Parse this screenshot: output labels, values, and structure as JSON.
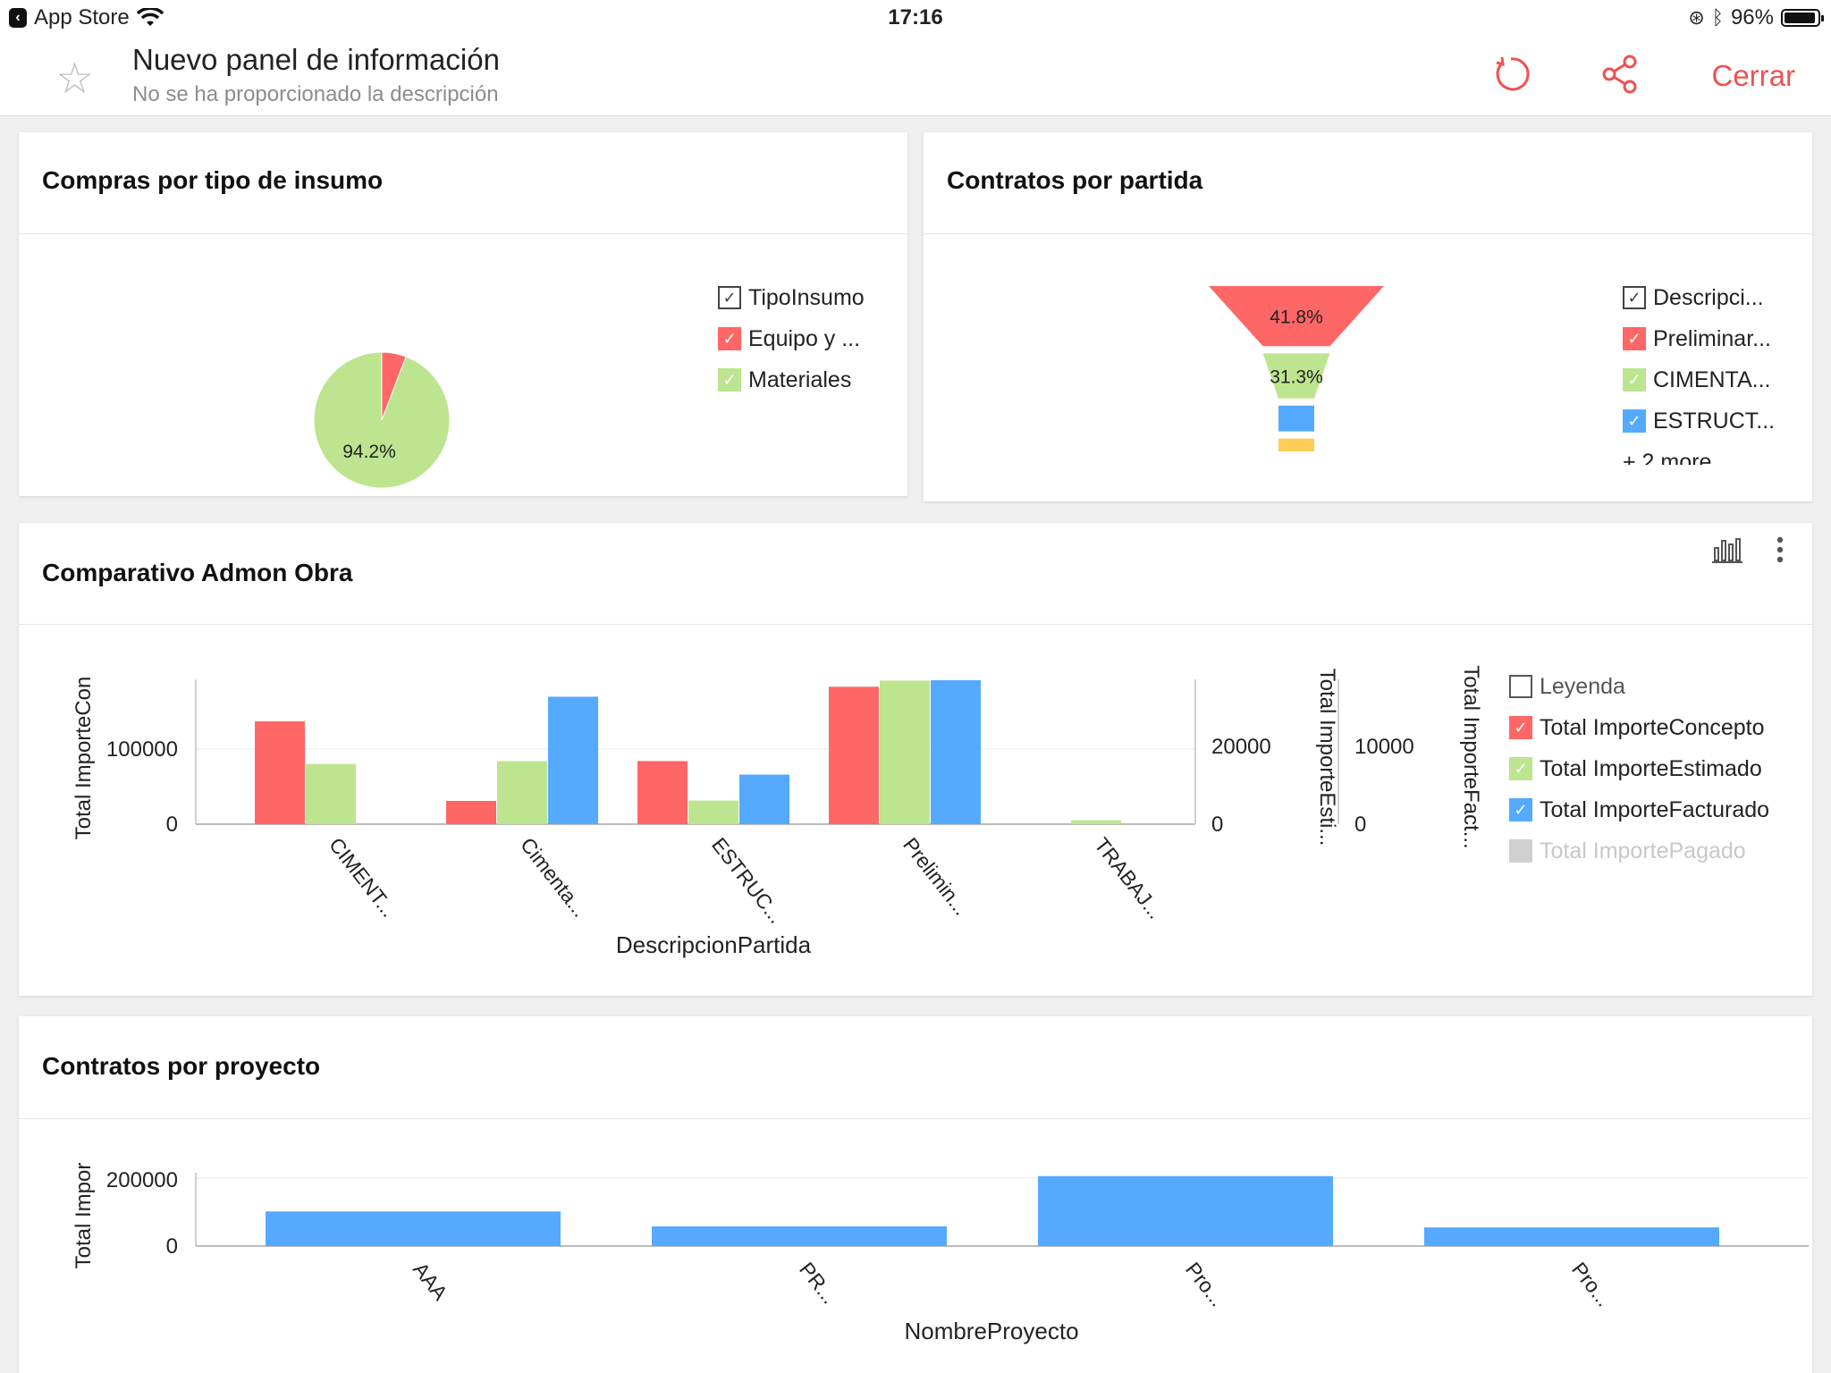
{
  "status_bar": {
    "back_app": "App Store",
    "time": "17:16",
    "battery": "96%"
  },
  "header": {
    "title": "Nuevo panel de información",
    "subtitle": "No se ha proporcionado la descripción",
    "close_label": "Cerrar"
  },
  "colors": {
    "accent": "#f05151",
    "red": "#ff6666",
    "green": "#bde58f",
    "blue": "#55aaff",
    "yellow": "#ffcc55",
    "grey": "#d0d0d0"
  },
  "cards": {
    "pie": {
      "title": "Compras por tipo de insumo",
      "legend_title": "TipoInsumo",
      "legend": [
        "Equipo y ...",
        "Materiales"
      ]
    },
    "funnel": {
      "title": "Contratos por partida",
      "legend_title": "Descripci...",
      "legend": [
        "Preliminar...",
        "CIMENTA...",
        "ESTRUCT..."
      ],
      "more": "+ 2 more"
    },
    "combo": {
      "title": "Comparativo Admon Obra",
      "legend_title": "Leyenda",
      "legend": [
        "Total ImporteConcepto",
        "Total ImporteEstimado",
        "Total ImporteFacturado",
        "Total ImportePagado"
      ],
      "ylabel_left": "Total ImporteCon",
      "ylabel_right1": "Total ImporteEsti...",
      "ylabel_right2": "Total ImporteFact...",
      "xlabel": "DescripcionPartida"
    },
    "bars": {
      "title": "Contratos por proyecto",
      "ylabel": "Total Impor",
      "xlabel": "NombreProyecto"
    }
  },
  "chart_data": [
    {
      "type": "pie",
      "title": "Compras por tipo de insumo",
      "slices": [
        {
          "name": "Equipo y ...",
          "value": 5.8,
          "color": "#ff6666"
        },
        {
          "name": "Materiales",
          "value": 94.2,
          "color": "#bde58f",
          "label": "94.2%"
        }
      ]
    },
    {
      "type": "funnel",
      "title": "Contratos por partida",
      "stages": [
        {
          "name": "Preliminar...",
          "value": 41.8,
          "label": "41.8%",
          "color": "#ff6666"
        },
        {
          "name": "CIMENTA...",
          "value": 31.3,
          "label": "31.3%",
          "color": "#bde58f"
        },
        {
          "name": "ESTRUCT...",
          "value": 18.0,
          "color": "#55aaff"
        },
        {
          "name": "",
          "value": 8.9,
          "color": "#ffcc55"
        }
      ]
    },
    {
      "type": "bar",
      "title": "Comparativo Admon Obra",
      "categories": [
        "CIMENT...",
        "Cimenta...",
        "ESTRUC...",
        "Prelimin...",
        "TRABAJ..."
      ],
      "axes": {
        "left": {
          "ticks": [
            "0",
            "100000"
          ],
          "ylim": [
            0,
            200000
          ]
        },
        "right1": {
          "ticks": [
            "0",
            "20000"
          ],
          "ylim": [
            0,
            40000
          ]
        },
        "right2": {
          "ticks": [
            "0",
            "10000"
          ],
          "ylim": [
            0,
            20000
          ]
        }
      },
      "series": [
        {
          "name": "Total ImporteConcepto",
          "axis": "left",
          "color": "#ff6666",
          "values": [
            137000,
            31000,
            84000,
            183000,
            0
          ]
        },
        {
          "name": "Total ImporteEstimado",
          "axis": "right1",
          "color": "#bde58f",
          "values": [
            15300,
            16000,
            6000,
            36500,
            1000
          ]
        },
        {
          "name": "Total ImporteFacturado",
          "axis": "right2",
          "color": "#55aaff",
          "values": [
            0,
            16200,
            6300,
            18300,
            0
          ]
        }
      ],
      "xlabel": "DescripcionPartida"
    },
    {
      "type": "bar",
      "title": "Contratos por proyecto",
      "categories": [
        "AAA",
        "PR...",
        "Pro...",
        "Pro..."
      ],
      "series": [
        {
          "name": "",
          "color": "#55aaff",
          "values": [
            102000,
            58000,
            206000,
            55000
          ]
        }
      ],
      "yticks": [
        "0",
        "200000"
      ],
      "ylim": [
        0,
        230000
      ],
      "xlabel": "NombreProyecto"
    }
  ]
}
